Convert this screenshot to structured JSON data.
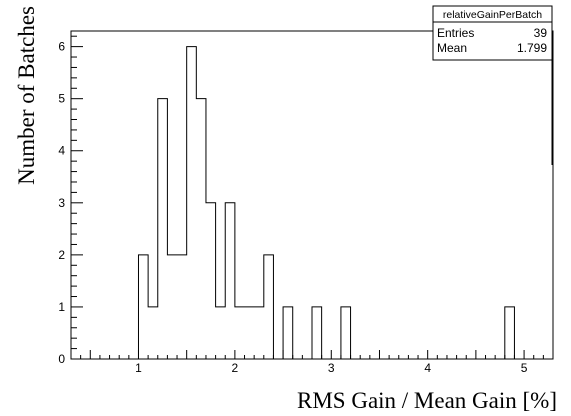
{
  "chart_data": {
    "type": "bar",
    "style": "step-histogram",
    "xlabel": "RMS Gain / Mean Gain [%]",
    "ylabel": "Number of Batches",
    "xlim": [
      0.3,
      5.3
    ],
    "ylim": [
      0,
      6.3
    ],
    "bin_width": 0.1,
    "x_ticks": [
      1,
      2,
      3,
      4,
      5
    ],
    "y_ticks": [
      0,
      1,
      2,
      3,
      4,
      5,
      6
    ],
    "bins": [
      {
        "x": 1.0,
        "value": 2
      },
      {
        "x": 1.1,
        "value": 1
      },
      {
        "x": 1.2,
        "value": 5
      },
      {
        "x": 1.3,
        "value": 2
      },
      {
        "x": 1.4,
        "value": 2
      },
      {
        "x": 1.5,
        "value": 6
      },
      {
        "x": 1.6,
        "value": 5
      },
      {
        "x": 1.7,
        "value": 3
      },
      {
        "x": 1.8,
        "value": 1
      },
      {
        "x": 1.9,
        "value": 3
      },
      {
        "x": 2.0,
        "value": 1
      },
      {
        "x": 2.1,
        "value": 1
      },
      {
        "x": 2.2,
        "value": 1
      },
      {
        "x": 2.3,
        "value": 2
      },
      {
        "x": 2.4,
        "value": 0
      },
      {
        "x": 2.5,
        "value": 1
      },
      {
        "x": 2.6,
        "value": 0
      },
      {
        "x": 2.7,
        "value": 0
      },
      {
        "x": 2.8,
        "value": 1
      },
      {
        "x": 2.9,
        "value": 0
      },
      {
        "x": 3.0,
        "value": 0
      },
      {
        "x": 3.1,
        "value": 1
      },
      {
        "x": 4.8,
        "value": 1
      }
    ],
    "legend": {
      "title": "relativeGainPerBatch",
      "rows": [
        {
          "label": "Entries",
          "value": "39"
        },
        {
          "label": "Mean",
          "value": "1.799"
        }
      ]
    }
  }
}
